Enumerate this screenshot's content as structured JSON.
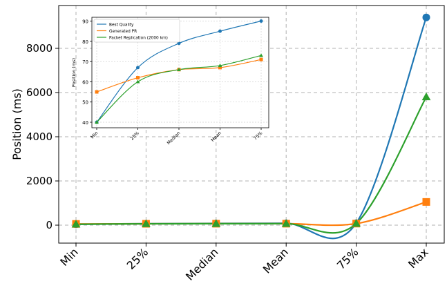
{
  "chart_data": [
    {
      "type": "line",
      "ylabel": "Position (ms)",
      "categories": [
        "Min",
        "25%",
        "Median",
        "Mean",
        "75%",
        "Max"
      ],
      "yticks": [
        "0",
        "2000",
        "4000",
        "6000",
        "8000"
      ],
      "ylim": [
        -900,
        9800
      ],
      "grid": true,
      "series": [
        {
          "name": "Best Quality",
          "color": "#1f77b4",
          "marker": "circle",
          "values": [
            40,
            67,
            79,
            85,
            90,
            9400
          ]
        },
        {
          "name": "Generated PR",
          "color": "#ff7f0e",
          "marker": "square",
          "values": [
            55,
            62,
            66,
            67,
            71,
            1050
          ]
        },
        {
          "name": "Packet Replication (2000 km)",
          "color": "#2ca02c",
          "marker": "triangle",
          "values": [
            40,
            60,
            66,
            68,
            73,
            5800
          ]
        }
      ]
    },
    {
      "type": "line",
      "ylabel": "Position (ms)",
      "categories": [
        "Min",
        "25%",
        "Median",
        "Mean",
        "75%"
      ],
      "yticks": [
        "40",
        "50",
        "60",
        "70",
        "80",
        "90"
      ],
      "ylim": [
        38,
        92
      ],
      "grid": true,
      "legend": "top-left",
      "legend_labels": [
        "Best Quality",
        "Generated PR",
        "Packet Replication (2000 km)"
      ],
      "series": [
        {
          "name": "Best Quality",
          "color": "#1f77b4",
          "marker": "circle",
          "values": [
            40,
            67,
            79,
            85,
            90
          ]
        },
        {
          "name": "Generated PR",
          "color": "#ff7f0e",
          "marker": "square",
          "values": [
            55,
            62,
            66,
            67,
            71
          ]
        },
        {
          "name": "Packet Replication (2000 km)",
          "color": "#2ca02c",
          "marker": "triangle",
          "values": [
            40,
            60,
            66,
            68,
            73
          ]
        }
      ]
    }
  ]
}
